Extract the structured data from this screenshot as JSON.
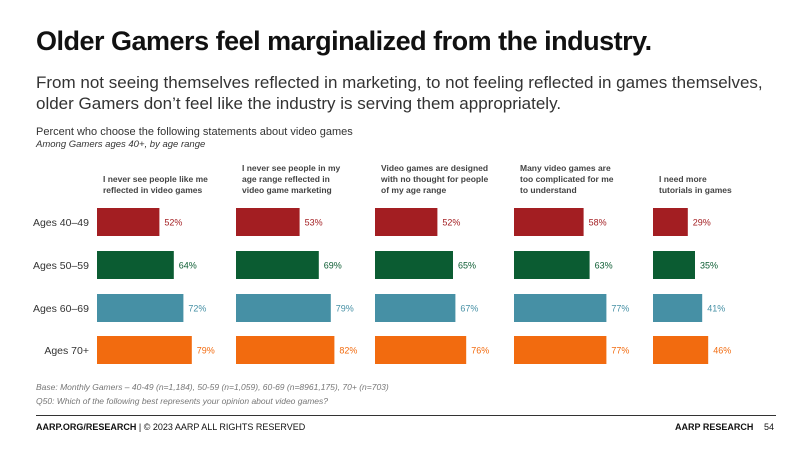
{
  "slide": {
    "title": "Older Gamers feel marginalized from the industry.",
    "subtitle": "From not seeing themselves reflected in marketing, to not feeling reflected in games themselves, older Gamers don’t feel like the industry is serving them appropriately.",
    "base_note": "Base: Monthly Gamers – 40-49 (n=1,184), 50-59 (n=1,059), 60-69 (n=8961,175), 70+ (n=703)",
    "question_note": "Q50: Which of the following best represents your opinion about video games?",
    "footer_brand": "AARP.ORG/RESEARCH",
    "footer_rights": " | © 2023 AARP ALL RIGHTS RESERVED",
    "footer_right": "AARP RESEARCH",
    "page_number": "54"
  },
  "chart_data": {
    "type": "bar",
    "orientation": "horizontal",
    "layout": "small-multiples",
    "title": "Percent who choose the following statements about video games",
    "subtitle": "Among Gamers ages 40+, by age range",
    "categories": [
      "Ages 40–49",
      "Ages 50–59",
      "Ages 60–69",
      "Ages 70+"
    ],
    "series": [
      {
        "name": "I never see people like me reflected in video games",
        "header_lines": [
          "I never see people like me",
          "reflected in video games"
        ],
        "values": [
          52,
          64,
          72,
          79
        ]
      },
      {
        "name": "I never see people in my age range reflected in video game marketing",
        "header_lines": [
          "I never see people in my",
          "age range reflected in",
          "video game marketing"
        ],
        "values": [
          53,
          69,
          79,
          82
        ]
      },
      {
        "name": "Video games are designed with no thought for people of my age range",
        "header_lines": [
          "Video games are designed",
          "with no thought for people",
          "of my age range"
        ],
        "values": [
          52,
          65,
          67,
          76
        ]
      },
      {
        "name": "Many video games are too complicated for me to understand",
        "header_lines": [
          "Many video games are",
          "too complicated for me",
          "to understand"
        ],
        "values": [
          58,
          63,
          77,
          77
        ]
      },
      {
        "name": "I need more tutorials in games",
        "header_lines": [
          "I need more",
          "tutorials in games"
        ],
        "values": [
          29,
          35,
          41,
          46
        ]
      }
    ],
    "category_colors": [
      "#a31e22",
      "#0b5c32",
      "#4690a5",
      "#f26b0f"
    ],
    "label_colors": [
      "#a31e22",
      "#0b5c32",
      "#4690a5",
      "#f26b0f"
    ],
    "value_suffix": "%",
    "xlim": [
      0,
      100
    ],
    "grid": false
  }
}
